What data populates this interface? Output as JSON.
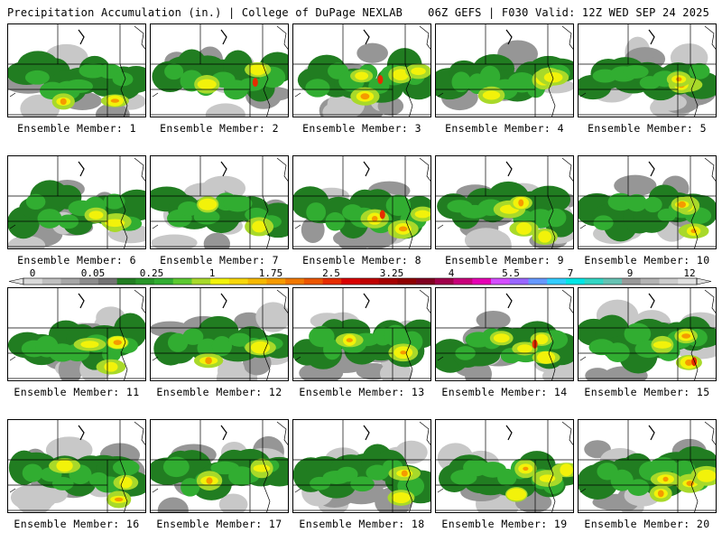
{
  "header": {
    "left_title": "Precipitation Accumulation (in.) | College of DuPage NEXLAB",
    "right_title": "06Z GEFS | F030 Valid: 12Z WED SEP 24 2025"
  },
  "panel_label_prefix": "Ensemble Member: ",
  "members": [
    {
      "label": "Ensemble Member: 1",
      "number": 1
    },
    {
      "label": "Ensemble Member: 2",
      "number": 2
    },
    {
      "label": "Ensemble Member: 3",
      "number": 3
    },
    {
      "label": "Ensemble Member: 4",
      "number": 4
    },
    {
      "label": "Ensemble Member: 5",
      "number": 5
    },
    {
      "label": "Ensemble Member: 6",
      "number": 6
    },
    {
      "label": "Ensemble Member: 7",
      "number": 7
    },
    {
      "label": "Ensemble Member: 8",
      "number": 8
    },
    {
      "label": "Ensemble Member: 9",
      "number": 9
    },
    {
      "label": "Ensemble Member: 10",
      "number": 10
    },
    {
      "label": "Ensemble Member: 11",
      "number": 11
    },
    {
      "label": "Ensemble Member: 12",
      "number": 12
    },
    {
      "label": "Ensemble Member: 13",
      "number": 13
    },
    {
      "label": "Ensemble Member: 14",
      "number": 14
    },
    {
      "label": "Ensemble Member: 15",
      "number": 15
    },
    {
      "label": "Ensemble Member: 16",
      "number": 16
    },
    {
      "label": "Ensemble Member: 17",
      "number": 17
    },
    {
      "label": "Ensemble Member: 18",
      "number": 18
    },
    {
      "label": "Ensemble Member: 19",
      "number": 19
    },
    {
      "label": "Ensemble Member: 20",
      "number": 20
    }
  ],
  "colorbar": {
    "labels": [
      "0",
      "0.05",
      "0.25",
      "1",
      "1.75",
      "2.5",
      "3.25",
      "4",
      "5.5",
      "7",
      "9",
      "12"
    ],
    "colors": [
      "#d9d9d9",
      "#bfbfbf",
      "#a6a6a6",
      "#8c8c8c",
      "#737373",
      "#217d21",
      "#289628",
      "#31ad31",
      "#5cc930",
      "#a8d92a",
      "#f2f20a",
      "#f7d60a",
      "#f5b800",
      "#f59a00",
      "#f07800",
      "#eb5500",
      "#e62c00",
      "#d90000",
      "#c00000",
      "#a60000",
      "#8f0000",
      "#800020",
      "#a0004a",
      "#c8007a",
      "#e600b4",
      "#d44dff",
      "#9966ff",
      "#6699ff",
      "#33ccff",
      "#00e6e6",
      "#33d6c4",
      "#66c2b3",
      "#999999",
      "#b3b3b3",
      "#cccccc",
      "#e0e0e0"
    ]
  },
  "field_colors": {
    "light_gray": "#c8c8c8",
    "gray": "#969696",
    "dark_gray": "#6e6e6e",
    "dark_green": "#217d21",
    "green": "#31ad31",
    "light_green": "#a8d92a",
    "yellow": "#f2f20a",
    "orange": "#f59a00",
    "red": "#e62c00"
  }
}
